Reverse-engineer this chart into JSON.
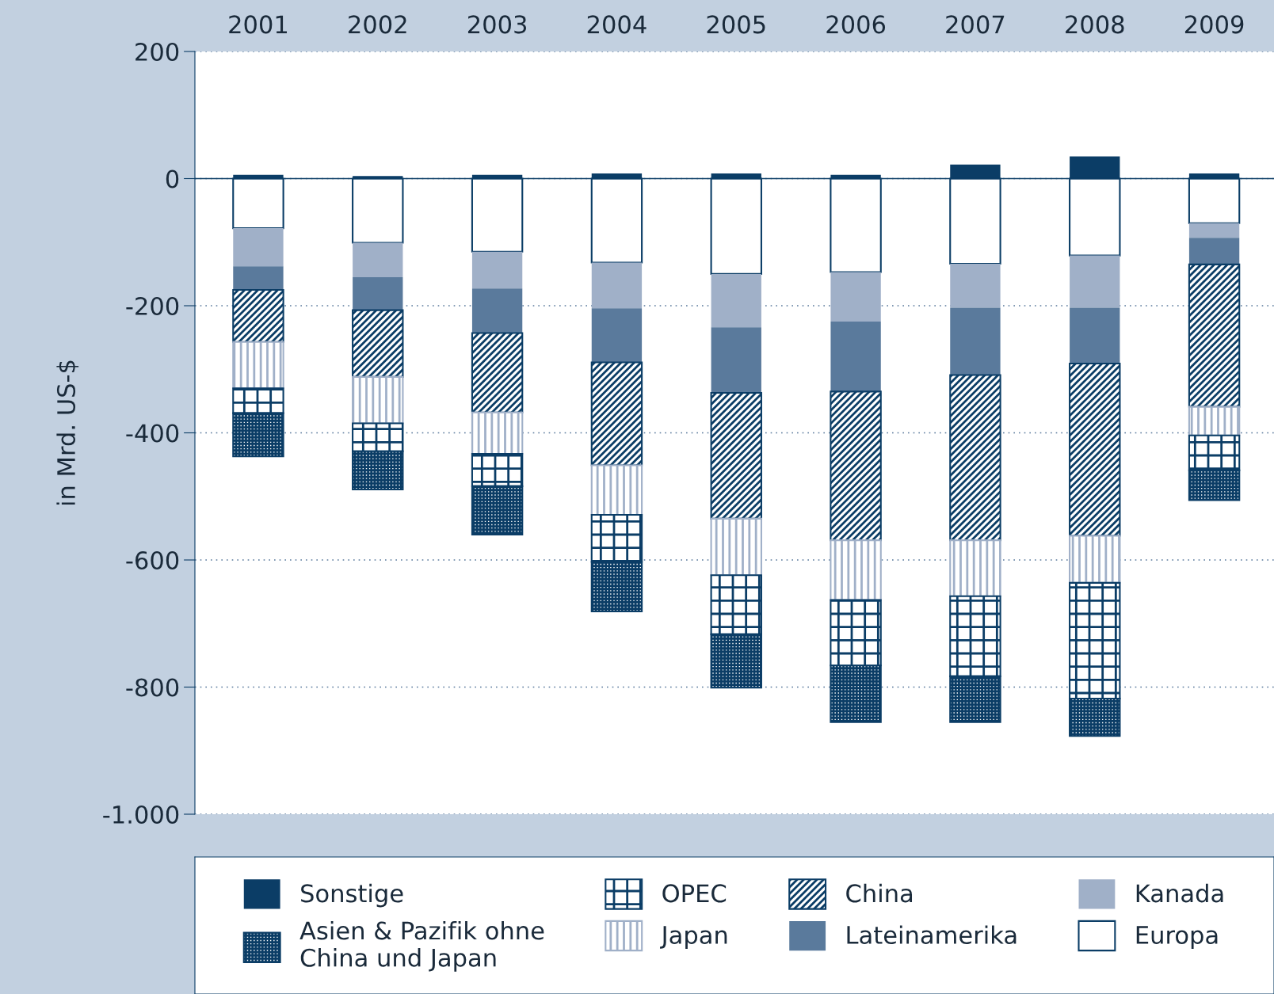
{
  "chart_data": {
    "type": "bar",
    "stacked": true,
    "ylabel": "in Mrd. US-$",
    "categories": [
      "2001",
      "2002",
      "2003",
      "2004",
      "2005",
      "2006",
      "2007",
      "2008",
      "2009"
    ],
    "series": [
      {
        "name": "Sonstige",
        "color": "#0b3d66",
        "values": [
          6,
          4,
          6,
          8,
          8,
          6,
          22,
          35,
          8
        ]
      },
      {
        "name": "Europa",
        "color": "#ffffff",
        "values": [
          -78,
          -101,
          -115,
          -132,
          -150,
          -147,
          -134,
          -121,
          -70
        ]
      },
      {
        "name": "Kanada",
        "color": "#a0b0c8",
        "values": [
          -60,
          -54,
          -58,
          -72,
          -84,
          -78,
          -69,
          -82,
          -23
        ]
      },
      {
        "name": "Lateinamerika",
        "color": "#5a7a9c",
        "values": [
          -37,
          -52,
          -70,
          -85,
          -103,
          -110,
          -106,
          -88,
          -42
        ]
      },
      {
        "name": "China",
        "color": "#0b3d66",
        "values": [
          -82,
          -105,
          -125,
          -162,
          -198,
          -234,
          -260,
          -271,
          -224
        ]
      },
      {
        "name": "Japan",
        "color": "#a0b0c8",
        "values": [
          -73,
          -73,
          -65,
          -78,
          -89,
          -94,
          -88,
          -74,
          -45
        ]
      },
      {
        "name": "OPEC",
        "color": "#0b3d66",
        "values": [
          -39,
          -44,
          -51,
          -74,
          -93,
          -103,
          -126,
          -182,
          -55
        ]
      },
      {
        "name": "Asien & Pazifik ohne\nChina und Japan",
        "color": "#0b3d66",
        "values": [
          -68,
          -60,
          -76,
          -78,
          -84,
          -89,
          -72,
          -59,
          -47
        ]
      }
    ],
    "ylim": [
      -1000,
      200
    ],
    "yticks": [
      {
        "value": -1000,
        "label": "-1.000"
      },
      -800,
      -600,
      -400,
      -200,
      0,
      200
    ],
    "ref_lines": [
      {
        "axis": "y",
        "value": 0,
        "color": "#0b3d66",
        "line_style": "solid"
      }
    ],
    "grid": "y",
    "legend": "bottom"
  }
}
